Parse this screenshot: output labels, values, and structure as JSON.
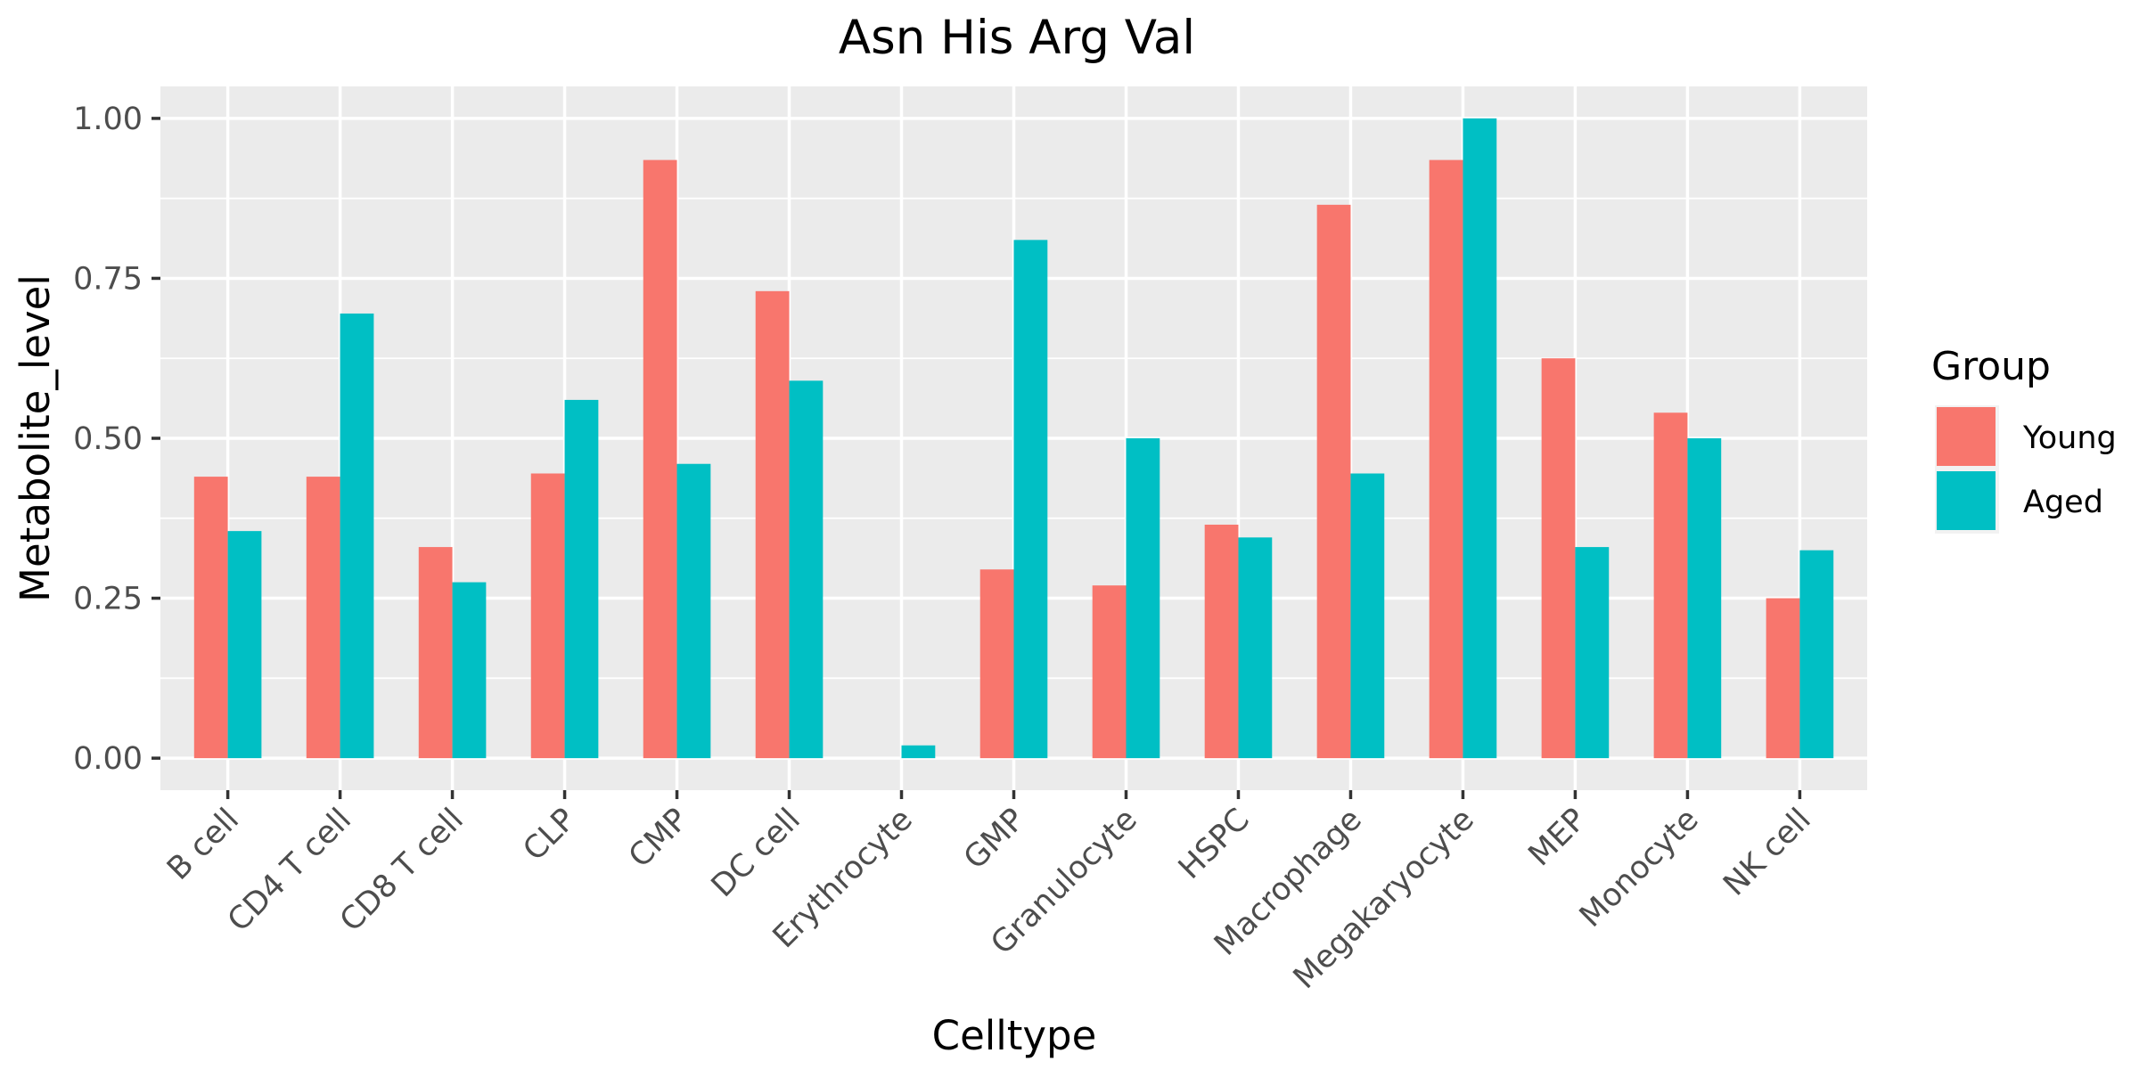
{
  "chart_data": {
    "type": "bar",
    "title": "Asn His Arg Val",
    "xlabel": "Celltype",
    "ylabel": "Metabolite_level",
    "ylim": [
      -0.05,
      1.05
    ],
    "yticks": [
      0,
      0.25,
      0.5,
      0.75,
      1.0
    ],
    "ytick_labels": [
      "0.00",
      "0.25",
      "0.50",
      "0.75",
      "1.00"
    ],
    "grid": true,
    "legend_position": "right",
    "legend_title": "Group",
    "categories": [
      "B cell",
      "CD4 T cell",
      "CD8 T cell",
      "CLP",
      "CMP",
      "DC cell",
      "Erythrocyte",
      "GMP",
      "Granulocyte",
      "HSPC",
      "Macrophage",
      "Megakaryocyte",
      "MEP",
      "Monocyte",
      "NK cell"
    ],
    "series": [
      {
        "name": "Young",
        "color": "#F8766D",
        "values": [
          0.44,
          0.44,
          0.33,
          0.445,
          0.935,
          0.73,
          0.0,
          0.295,
          0.27,
          0.365,
          0.865,
          0.935,
          0.625,
          0.54,
          0.25
        ]
      },
      {
        "name": "Aged",
        "color": "#00BFC4",
        "values": [
          0.355,
          0.695,
          0.275,
          0.56,
          0.46,
          0.59,
          0.02,
          0.81,
          0.5,
          0.345,
          0.445,
          1.0,
          0.33,
          0.5,
          0.325
        ]
      }
    ]
  },
  "colors": {
    "panel_background": "#EBEBEB",
    "grid_line": "#FFFFFF",
    "tick_label": "#4D4D4D",
    "axis_tick": "#333333"
  }
}
